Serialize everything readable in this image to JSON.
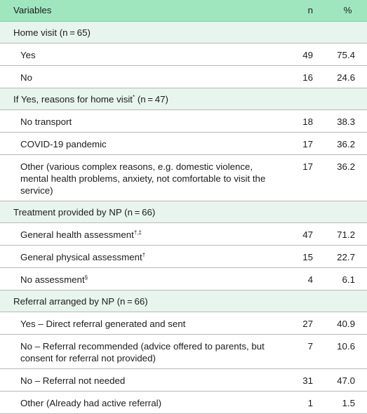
{
  "table": {
    "headers": {
      "variables": "Variables",
      "n": "n",
      "percent": "%"
    },
    "groups": [
      {
        "label": "Home visit (n = 65)",
        "label_mark": "",
        "label_suffix": "",
        "rows": [
          {
            "label": "Yes",
            "mark": "",
            "n": "49",
            "percent": "75.4"
          },
          {
            "label": "No",
            "mark": "",
            "n": "16",
            "percent": "24.6"
          }
        ]
      },
      {
        "label": "If Yes, reasons for home visit",
        "label_mark": "*",
        "label_suffix": " (n = 47)",
        "rows": [
          {
            "label": "No transport",
            "mark": "",
            "n": "18",
            "percent": "38.3"
          },
          {
            "label": "COVID-19 pandemic",
            "mark": "",
            "n": "17",
            "percent": "36.2"
          },
          {
            "label": "Other (various complex reasons, e.g. domestic violence, mental health problems, anxiety, not comfortable to visit the service)",
            "mark": "",
            "n": "17",
            "percent": "36.2"
          }
        ]
      },
      {
        "label": "Treatment provided by NP (n = 66)",
        "label_mark": "",
        "label_suffix": "",
        "rows": [
          {
            "label": "General health assessment",
            "mark": "†,‡",
            "n": "47",
            "percent": "71.2"
          },
          {
            "label": "General physical assessment",
            "mark": "†",
            "n": "15",
            "percent": "22.7"
          },
          {
            "label": "No assessment",
            "mark": "§",
            "n": "4",
            "percent": "6.1"
          }
        ]
      },
      {
        "label": "Referral arranged by NP (n = 66)",
        "label_mark": "",
        "label_suffix": "",
        "rows": [
          {
            "label": "Yes – Direct referral generated and sent",
            "mark": "",
            "n": "27",
            "percent": "40.9"
          },
          {
            "label": "No – Referral recommended (advice offered to parents, but consent for referral not provided)",
            "mark": "",
            "n": "7",
            "percent": "10.6"
          },
          {
            "label": "No – Referral not needed",
            "mark": "",
            "n": "31",
            "percent": "47.0"
          },
          {
            "label": "Other (Already had active referral)",
            "mark": "",
            "n": "1",
            "percent": "1.5"
          }
        ]
      }
    ]
  }
}
